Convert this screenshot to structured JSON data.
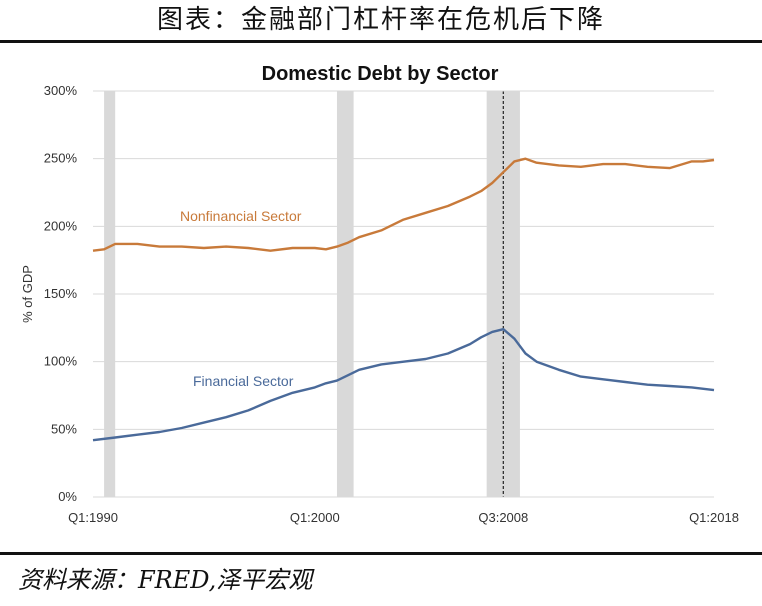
{
  "header": {
    "title": "图表：金融部门杠杆率在危机后下降"
  },
  "footer": {
    "source": "资料来源：FRED,泽平宏观"
  },
  "chart_data": {
    "type": "line",
    "title": "Domestic Debt by Sector",
    "xlabel": "",
    "ylabel": "% of GDP",
    "x_range": [
      1990.0,
      2018.0
    ],
    "ylim": [
      0,
      300
    ],
    "yticks": [
      {
        "value": 0,
        "label": "0%"
      },
      {
        "value": 50,
        "label": "50%"
      },
      {
        "value": 100,
        "label": "100%"
      },
      {
        "value": 150,
        "label": "150%"
      },
      {
        "value": 200,
        "label": "200%"
      },
      {
        "value": 250,
        "label": "250%"
      },
      {
        "value": 300,
        "label": "300%"
      }
    ],
    "xticks": [
      {
        "value": 1990.0,
        "label": "Q1:1990"
      },
      {
        "value": 2000.0,
        "label": "Q1:2000"
      },
      {
        "value": 2008.5,
        "label": "Q3:2008"
      },
      {
        "value": 2018.0,
        "label": "Q1:2018"
      }
    ],
    "grid": "horizontal",
    "recessions": [
      [
        1990.5,
        1991.0
      ],
      [
        2001.0,
        2001.75
      ],
      [
        2007.75,
        2009.25
      ]
    ],
    "marker_line": 2008.5,
    "colors": {
      "nonfinancial": "#c87a3a",
      "financial": "#4a6a9a",
      "recession": "#d9d9d9",
      "grid": "#d9d9d9"
    },
    "series": [
      {
        "name": "Nonfinancial Sector",
        "color": "#c87a3a",
        "x": [
          1990,
          1990.5,
          1991,
          1992,
          1993,
          1994,
          1995,
          1996,
          1997,
          1998,
          1999,
          2000,
          2000.5,
          2001,
          2001.5,
          2002,
          2003,
          2004,
          2005,
          2006,
          2007,
          2007.5,
          2008,
          2008.5,
          2009,
          2009.5,
          2010,
          2011,
          2012,
          2013,
          2014,
          2015,
          2016,
          2017,
          2017.5,
          2018
        ],
        "values": [
          182,
          183,
          187,
          187,
          185,
          185,
          184,
          185,
          184,
          182,
          184,
          184,
          183,
          185,
          188,
          192,
          197,
          205,
          210,
          215,
          222,
          226,
          232,
          240,
          248,
          250,
          247,
          245,
          244,
          246,
          246,
          244,
          243,
          248,
          248,
          249
        ]
      },
      {
        "name": "Financial Sector",
        "color": "#4a6a9a",
        "x": [
          1990,
          1991,
          1992,
          1993,
          1994,
          1995,
          1996,
          1997,
          1998,
          1999,
          2000,
          2000.5,
          2001,
          2001.5,
          2002,
          2003,
          2004,
          2005,
          2006,
          2007,
          2007.5,
          2008,
          2008.5,
          2009,
          2009.5,
          2010,
          2011,
          2012,
          2013,
          2014,
          2015,
          2016,
          2017,
          2018
        ],
        "values": [
          42,
          44,
          46,
          48,
          51,
          55,
          59,
          64,
          71,
          77,
          81,
          84,
          86,
          90,
          94,
          98,
          100,
          102,
          106,
          113,
          118,
          122,
          124,
          117,
          106,
          100,
          94,
          89,
          87,
          85,
          83,
          82,
          81,
          79
        ]
      }
    ]
  }
}
